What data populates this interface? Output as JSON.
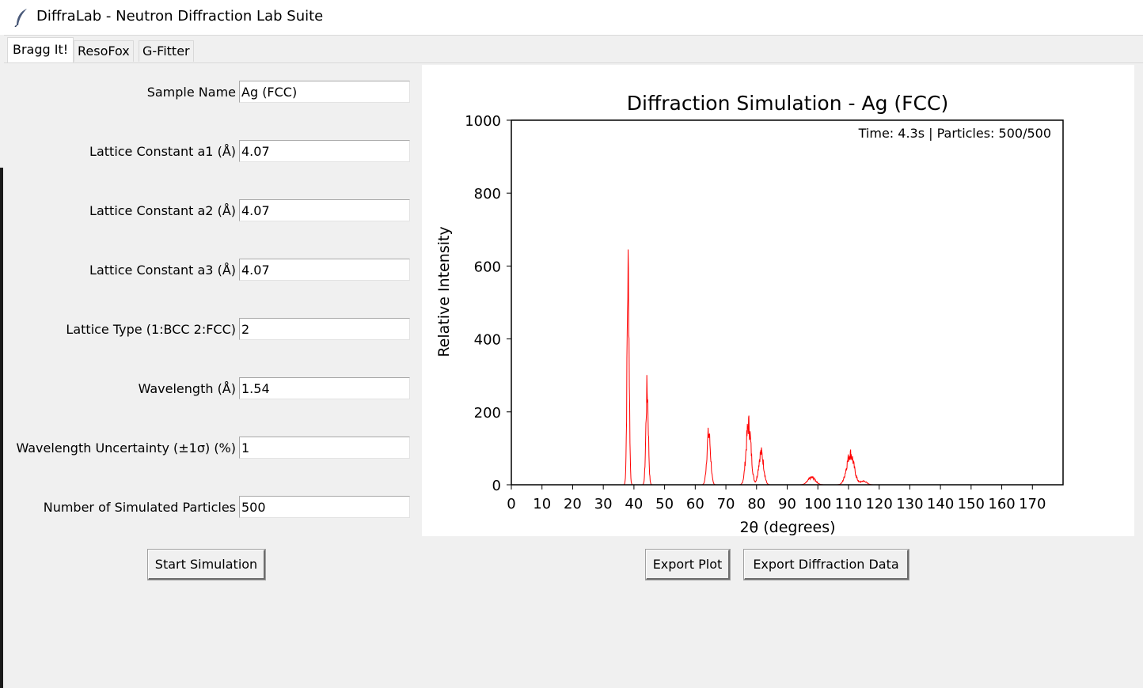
{
  "window": {
    "title": "DiffraLab - Neutron Diffraction Lab Suite"
  },
  "tabs": [
    "Bragg It!",
    "ResoFox",
    "G-Fitter"
  ],
  "form": {
    "fields": [
      {
        "label": "Sample Name",
        "value": "Ag (FCC)"
      },
      {
        "label": "Lattice Constant a1 (Å)",
        "value": "4.07"
      },
      {
        "label": "Lattice Constant a2 (Å)",
        "value": "4.07"
      },
      {
        "label": "Lattice Constant a3 (Å)",
        "value": "4.07"
      },
      {
        "label": "Lattice Type (1:BCC 2:FCC)",
        "value": "2"
      },
      {
        "label": "Wavelength (Å)",
        "value": "1.54"
      },
      {
        "label": "Wavelength Uncertainty (±1σ) (%)",
        "value": "1"
      },
      {
        "label": "Number of Simulated Particles",
        "value": "500"
      }
    ],
    "start_button": "Start Simulation"
  },
  "buttons": {
    "export_plot": "Export Plot",
    "export_data": "Export Diffraction Data"
  },
  "chart_data": {
    "type": "line",
    "title": "Diffraction Simulation - Ag (FCC)",
    "xlabel": "2θ (degrees)",
    "ylabel": "Relative Intensity",
    "annotation": "Time: 4.3s | Particles: 500/500",
    "xlim": [
      0,
      180
    ],
    "ylim": [
      0,
      1000
    ],
    "x_ticks": [
      0,
      10,
      20,
      30,
      40,
      50,
      60,
      70,
      80,
      90,
      100,
      110,
      120,
      130,
      140,
      150,
      160,
      170
    ],
    "y_ticks": [
      0,
      200,
      400,
      600,
      800,
      1000
    ],
    "grid": false,
    "line_color": "#ff0000",
    "peaks": [
      {
        "two_theta": 38.1,
        "intensity": 580,
        "width": 0.35
      },
      {
        "two_theta": 44.3,
        "intensity": 260,
        "width": 0.4
      },
      {
        "two_theta": 64.4,
        "intensity": 140,
        "width": 0.6
      },
      {
        "two_theta": 77.4,
        "intensity": 165,
        "width": 0.8
      },
      {
        "two_theta": 81.5,
        "intensity": 88,
        "width": 0.8
      },
      {
        "two_theta": 98.0,
        "intensity": 20,
        "width": 1.2
      },
      {
        "two_theta": 110.6,
        "intensity": 85,
        "width": 1.2
      },
      {
        "two_theta": 114.9,
        "intensity": 10,
        "width": 1.0
      }
    ]
  }
}
